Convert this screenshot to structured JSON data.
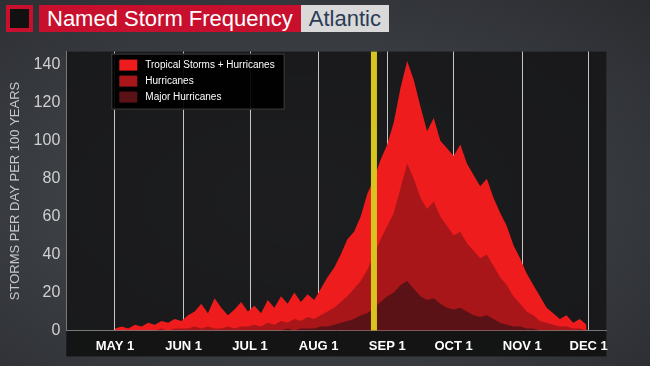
{
  "chart_data": {
    "type": "area",
    "title": "Named Storm Frequency",
    "subtitle": "Atlantic",
    "y_label": "STORMS PER DAY PER 100 YEARS",
    "x": [
      0,
      3,
      6,
      9,
      12,
      15,
      18,
      21,
      24,
      27,
      30,
      33,
      36,
      39,
      42,
      45,
      48,
      51,
      54,
      57,
      60,
      63,
      66,
      69,
      72,
      75,
      78,
      81,
      84,
      87,
      90,
      93,
      96,
      99,
      102,
      105,
      108,
      111,
      114,
      117,
      120,
      123,
      126,
      129,
      132,
      135,
      138,
      141,
      144,
      147,
      150,
      153,
      156,
      159,
      162,
      165,
      168,
      171,
      174,
      177,
      180,
      183,
      186,
      189,
      192,
      195,
      198,
      201,
      204,
      207,
      210,
      213
    ],
    "series": [
      {
        "name": "Tropical Storms + Hurricanes",
        "color": "#ee1c1c",
        "values": [
          1,
          2,
          1,
          3,
          2,
          4,
          3,
          5,
          4,
          6,
          5,
          8,
          10,
          14,
          9,
          17,
          12,
          8,
          11,
          15,
          10,
          13,
          9,
          16,
          12,
          18,
          14,
          20,
          15,
          19,
          16,
          22,
          28,
          33,
          40,
          48,
          52,
          60,
          72,
          80,
          90,
          98,
          110,
          128,
          142,
          132,
          118,
          105,
          112,
          100,
          96,
          92,
          98,
          88,
          82,
          76,
          80,
          70,
          62,
          55,
          45,
          38,
          30,
          24,
          18,
          12,
          9,
          6,
          8,
          4,
          6,
          3
        ]
      },
      {
        "name": "Hurricanes",
        "color": "#a8161a",
        "values": [
          0,
          0,
          0,
          0,
          0,
          0,
          0,
          1,
          0,
          1,
          1,
          1,
          2,
          1,
          2,
          1,
          1,
          2,
          1,
          2,
          2,
          3,
          2,
          4,
          3,
          5,
          4,
          6,
          5,
          7,
          6,
          8,
          10,
          12,
          15,
          18,
          22,
          26,
          32,
          40,
          48,
          55,
          62,
          75,
          88,
          80,
          70,
          64,
          68,
          60,
          55,
          50,
          52,
          46,
          42,
          38,
          40,
          34,
          28,
          24,
          18,
          14,
          10,
          8,
          5,
          4,
          3,
          2,
          2,
          1,
          1,
          0
        ]
      },
      {
        "name": "Major Hurricanes",
        "color": "#5a1216",
        "values": [
          0,
          0,
          0,
          0,
          0,
          0,
          0,
          0,
          0,
          0,
          0,
          0,
          0,
          0,
          0,
          0,
          0,
          0,
          0,
          0,
          0,
          0,
          0,
          0,
          0,
          0,
          1,
          0,
          1,
          1,
          1,
          2,
          2,
          3,
          4,
          5,
          6,
          8,
          9,
          12,
          15,
          18,
          20,
          24,
          26,
          22,
          18,
          16,
          17,
          14,
          12,
          11,
          12,
          10,
          8,
          7,
          8,
          6,
          4,
          3,
          2,
          2,
          1,
          1,
          0,
          0,
          0,
          0,
          0,
          0,
          0,
          0
        ]
      }
    ],
    "xlim": [
      -22,
      222
    ],
    "xticks": [
      {
        "value": 0,
        "label": "MAY 1"
      },
      {
        "value": 31,
        "label": "JUN 1"
      },
      {
        "value": 61,
        "label": "JUL 1"
      },
      {
        "value": 92,
        "label": "AUG 1"
      },
      {
        "value": 123,
        "label": "SEP 1"
      },
      {
        "value": 153,
        "label": "OCT 1"
      },
      {
        "value": 184,
        "label": "NOV 1"
      },
      {
        "value": 214,
        "label": "DEC 1"
      }
    ],
    "ylim": [
      0,
      147
    ],
    "yticks": [
      0,
      20,
      40,
      60,
      80,
      100,
      120,
      140
    ],
    "grid": "x",
    "legend": "upper-left",
    "highlight": {
      "x": 117,
      "color": "#d8c41e"
    }
  }
}
